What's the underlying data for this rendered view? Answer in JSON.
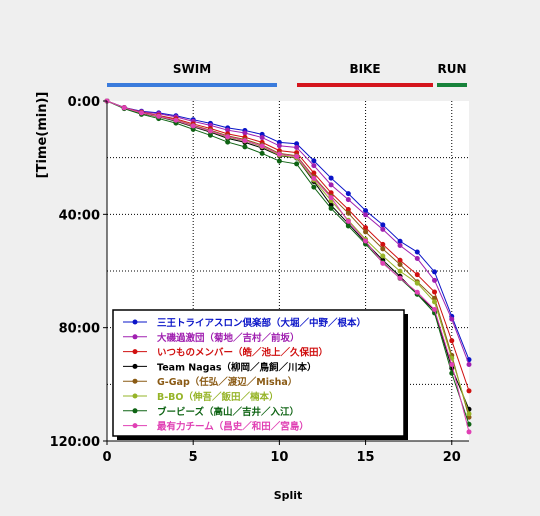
{
  "chart_data": {
    "type": "line",
    "title": "",
    "xlabel": "Split",
    "ylabel": "[Time(min)]",
    "xlim": [
      0,
      21
    ],
    "ylim": [
      0,
      120
    ],
    "y_inverted": true,
    "x_ticks": [
      0,
      5,
      10,
      15,
      20
    ],
    "x_tick_labels": [
      "0",
      "5",
      "10",
      "15",
      "20"
    ],
    "y_ticks": [
      0,
      40,
      80,
      120
    ],
    "y_tick_labels": [
      "0:00",
      "40:00",
      "80:00",
      "120:00"
    ],
    "grid": true,
    "legend_position": "bottom-left",
    "segments": [
      {
        "label": "SWIM",
        "start": 0,
        "end": 10,
        "color": "#3a7bdc"
      },
      {
        "label": "BIKE",
        "start": 11,
        "end": 19,
        "color": "#d4141c"
      },
      {
        "label": "RUN",
        "start": 19,
        "end": 21,
        "color": "#17823a"
      }
    ],
    "x": [
      0,
      1,
      2,
      3,
      4,
      5,
      6,
      7,
      8,
      9,
      10,
      11,
      12,
      13,
      14,
      15,
      16,
      17,
      18,
      19,
      20,
      21
    ],
    "series": [
      {
        "name": "三王トライアスロン倶楽部（大堀／中野／根本）",
        "color": "#0a14c8",
        "values": [
          0,
          2.3,
          3.6,
          4.2,
          5.2,
          6.6,
          7.9,
          9.5,
          10.4,
          11.8,
          14.6,
          15.1,
          21.1,
          27.2,
          32.7,
          38.7,
          43.7,
          49.5,
          53.3,
          60.3,
          76.0,
          91.3
        ]
      },
      {
        "name": "大磯過激団（菊地／吉村／前坂）",
        "color": "#a020b0",
        "values": [
          0,
          2.3,
          3.8,
          4.5,
          5.6,
          7.2,
          8.6,
          10.3,
          11.3,
          12.9,
          15.8,
          16.4,
          22.8,
          29.6,
          34.8,
          40.2,
          45.3,
          51.0,
          55.6,
          63.3,
          77.0,
          93.0
        ]
      },
      {
        "name": "いつものメンバー（皓／池上／久保田）",
        "color": "#d01010",
        "values": [
          0,
          2.4,
          4.0,
          5.1,
          6.3,
          8.1,
          9.7,
          11.6,
          12.8,
          14.6,
          17.5,
          18.2,
          25.4,
          32.4,
          38.3,
          44.7,
          50.6,
          56.2,
          61.3,
          67.4,
          84.6,
          102.3
        ]
      },
      {
        "name": "Team Nagas（柳岡／鳥飼／川本）",
        "color": "#000000",
        "values": [
          0,
          2.5,
          4.4,
          5.6,
          7.1,
          9.1,
          11.0,
          13.2,
          14.6,
          16.6,
          19.3,
          20.1,
          28.4,
          36.8,
          43.3,
          49.9,
          56.2,
          61.9,
          68.2,
          73.9,
          94.3,
          108.8
        ]
      },
      {
        "name": "G-Gap（任弘／渡辺／Misha）",
        "color": "#8a5a14",
        "values": [
          0,
          2.4,
          4.1,
          5.3,
          6.7,
          8.6,
          10.3,
          12.3,
          13.6,
          15.5,
          18.5,
          19.3,
          26.8,
          33.6,
          39.6,
          46.2,
          52.2,
          57.7,
          63.8,
          69.6,
          89.8,
          111.6
        ]
      },
      {
        "name": "B-BO（伸吾／飯田／楠本）",
        "color": "#96b428",
        "values": [
          0,
          2.5,
          4.3,
          5.5,
          6.9,
          8.9,
          10.7,
          12.8,
          14.1,
          16.1,
          19.1,
          20.0,
          27.9,
          35.2,
          42.1,
          48.8,
          54.7,
          60.1,
          64.3,
          70.9,
          90.8,
          110.4
        ]
      },
      {
        "name": "ブービーズ（高山／吉井／入江）",
        "color": "#0f6414",
        "values": [
          0,
          2.7,
          4.7,
          6.2,
          7.8,
          10.0,
          12.1,
          14.5,
          16.2,
          18.5,
          21.2,
          22.2,
          30.4,
          37.9,
          44.1,
          50.5,
          57.0,
          62.6,
          68.2,
          74.8,
          96.1,
          114.1
        ]
      },
      {
        "name": "最有力チーム（昌史／和田／宮島）",
        "color": "#e040b4",
        "values": [
          0,
          2.4,
          4.2,
          5.4,
          6.8,
          8.8,
          10.6,
          12.6,
          14.0,
          15.9,
          18.8,
          19.6,
          27.3,
          34.1,
          42.5,
          49.4,
          57.3,
          62.5,
          67.5,
          73.6,
          93.0,
          116.8
        ]
      }
    ]
  }
}
